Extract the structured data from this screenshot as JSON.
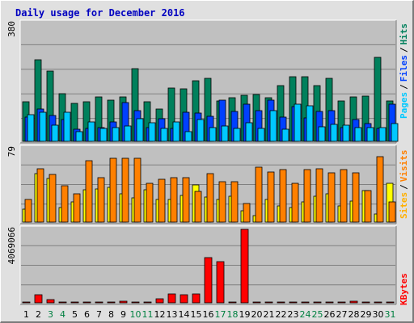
{
  "chart_data": [
    {
      "type": "bar",
      "title": "Daily usage for December 2016",
      "ymax_label": "380",
      "ylim": [
        0,
        380
      ],
      "categories": [
        "1",
        "2",
        "3",
        "4",
        "5",
        "6",
        "7",
        "8",
        "9",
        "10",
        "11",
        "12",
        "13",
        "14",
        "15",
        "16",
        "17",
        "18",
        "19",
        "20",
        "21",
        "22",
        "23",
        "24",
        "25",
        "26",
        "27",
        "28",
        "29",
        "30",
        "31"
      ],
      "weekend_days": [
        "3",
        "4",
        "10",
        "11",
        "17",
        "18",
        "24",
        "25",
        "31"
      ],
      "series": [
        {
          "name": "Hits",
          "color": "#00805c",
          "values": [
            127,
            263,
            227,
            153,
            123,
            127,
            143,
            133,
            143,
            234,
            128,
            103,
            173,
            170,
            196,
            204,
            131,
            141,
            149,
            150,
            141,
            180,
            209,
            208,
            180,
            204,
            129,
            143,
            147,
            270,
            131
          ]
        },
        {
          "name": "Files",
          "color": "#0040ff",
          "values": [
            79,
            104,
            83,
            69,
            40,
            41,
            45,
            62,
            126,
            98,
            45,
            73,
            41,
            93,
            91,
            81,
            133,
            97,
            121,
            100,
            132,
            78,
            112,
            76,
            97,
            100,
            43,
            71,
            58,
            42,
            119
          ]
        },
        {
          "name": "Pages",
          "color": "#00c8ff",
          "values": [
            87,
            93,
            53,
            93,
            31,
            63,
            42,
            45,
            49,
            72,
            60,
            41,
            62,
            30,
            69,
            45,
            50,
            41,
            60,
            41,
            98,
            38,
            119,
            114,
            46,
            54,
            52,
            45,
            45,
            45,
            58
          ]
        }
      ],
      "legend": [
        "Pages",
        "Files",
        "Hits"
      ],
      "legend_sep": "/",
      "legend_placement": "right-vertical",
      "grid": true
    },
    {
      "type": "bar",
      "ymax_label": "79",
      "ylim": [
        0,
        79
      ],
      "categories": [
        "1",
        "2",
        "3",
        "4",
        "5",
        "6",
        "7",
        "8",
        "9",
        "10",
        "11",
        "12",
        "13",
        "14",
        "15",
        "16",
        "17",
        "18",
        "19",
        "20",
        "21",
        "22",
        "23",
        "24",
        "25",
        "26",
        "27",
        "28",
        "29",
        "30",
        "31"
      ],
      "series": [
        {
          "name": "Sites",
          "color": "#ffff00",
          "values": [
            14,
            52,
            47,
            16,
            22,
            35,
            36,
            37,
            30,
            26,
            35,
            24,
            24,
            29,
            40,
            27,
            24,
            28,
            12,
            7,
            24,
            17,
            16,
            22,
            28,
            30,
            17,
            23,
            34,
            9,
            42
          ]
        },
        {
          "name": "Visits",
          "color": "#ff8000",
          "values": [
            24,
            57,
            51,
            39,
            30,
            66,
            48,
            69,
            69,
            69,
            42,
            46,
            48,
            48,
            33,
            52,
            43,
            43,
            20,
            59,
            54,
            56,
            42,
            56,
            57,
            53,
            56,
            53,
            34,
            70,
            22
          ]
        }
      ],
      "legend": [
        "Sites",
        "Visits"
      ],
      "legend_sep": "/",
      "legend_placement": "right-vertical",
      "grid": true
    },
    {
      "type": "bar",
      "ymax_label": "4069066",
      "ylim": [
        0,
        4069066
      ],
      "categories": [
        "1",
        "2",
        "3",
        "4",
        "5",
        "6",
        "7",
        "8",
        "9",
        "10",
        "11",
        "12",
        "13",
        "14",
        "15",
        "16",
        "17",
        "18",
        "19",
        "20",
        "21",
        "22",
        "23",
        "24",
        "25",
        "26",
        "27",
        "28",
        "29",
        "30",
        "31"
      ],
      "series": [
        {
          "name": "KBytes",
          "color": "#ff0000",
          "values": [
            0,
            430000,
            190000,
            0,
            0,
            0,
            0,
            0,
            110000,
            0,
            0,
            210000,
            480000,
            430000,
            480000,
            2520000,
            2280000,
            0,
            4069066,
            0,
            0,
            0,
            0,
            0,
            0,
            0,
            0,
            90000,
            0,
            0,
            0
          ]
        }
      ],
      "legend": [
        "KBytes"
      ],
      "legend_placement": "right-vertical",
      "grid": true
    }
  ]
}
